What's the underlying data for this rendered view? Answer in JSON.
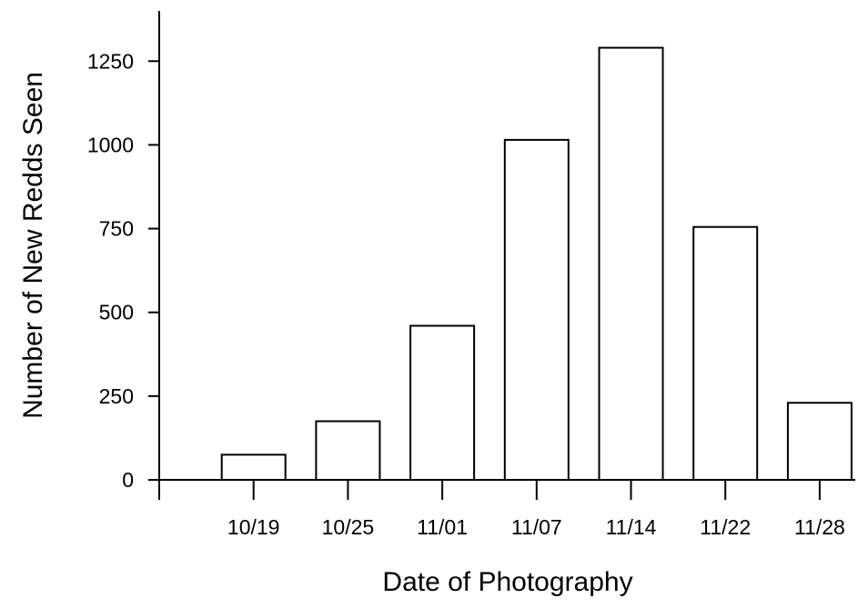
{
  "chart_data": {
    "type": "bar",
    "x_label": "Date of Photography",
    "y_label": "Number of New Redds Seen",
    "categories": [
      "10/19",
      "10/25",
      "11/01",
      "11/07",
      "11/14",
      "11/22",
      "11/28"
    ],
    "values": [
      75,
      175,
      460,
      1015,
      1290,
      755,
      230
    ],
    "color": "#ffffff",
    "ylim": [
      0,
      1400
    ],
    "yticks": [
      0,
      250,
      500,
      750,
      1000,
      1250
    ],
    "grid": false
  }
}
